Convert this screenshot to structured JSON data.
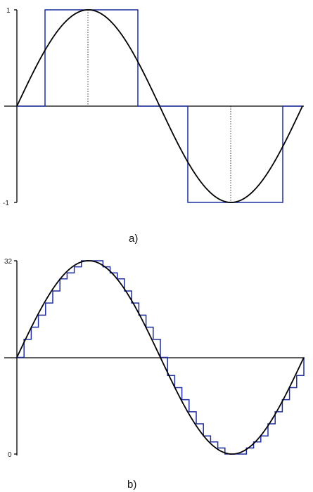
{
  "colors": {
    "sine": "#000000",
    "quantized": "#1f2f9e",
    "axis": "#000000"
  },
  "chart_data": [
    {
      "type": "line",
      "caption": "a)",
      "y_tick_labels": [
        "1",
        "-1"
      ],
      "ylim": [
        -1,
        1
      ],
      "series": [
        {
          "kind": "sine",
          "period": 1,
          "amplitude": 1
        },
        {
          "kind": "square",
          "x": [
            0,
            0.1,
            0.1,
            0.42,
            0.42,
            0.6,
            0.6,
            0.93,
            0.93,
            1.0
          ],
          "y": [
            0,
            0,
            1,
            1,
            0,
            0,
            -1,
            -1,
            0,
            0
          ]
        }
      ],
      "peak_markers_x": [
        0.25,
        0.75
      ]
    },
    {
      "type": "line",
      "caption": "b)",
      "y_tick_labels": [
        "32",
        "0"
      ],
      "ylim": [
        0,
        32
      ],
      "levels": 32,
      "series": [
        {
          "kind": "sine",
          "period": 1,
          "amplitude": 16,
          "offset": 16
        },
        {
          "kind": "staircase",
          "steps": 40
        }
      ]
    }
  ]
}
